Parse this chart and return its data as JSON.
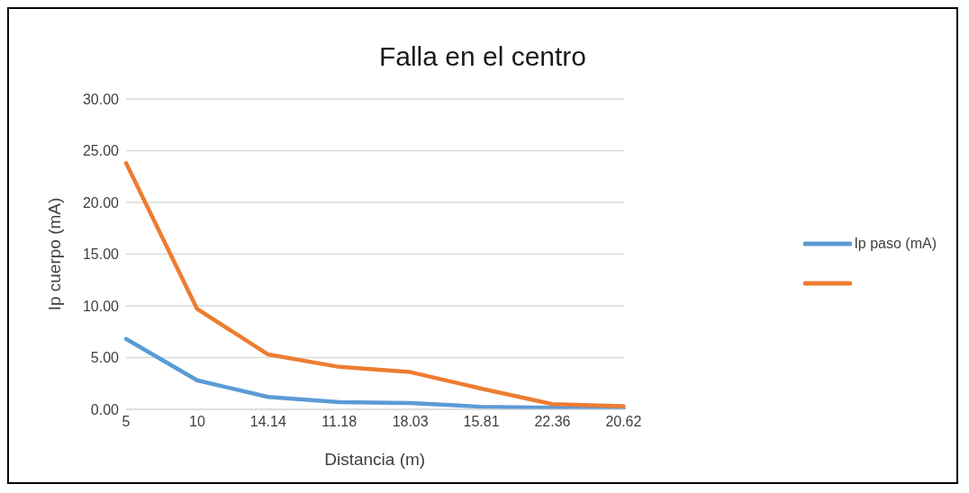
{
  "chart_data": {
    "type": "line",
    "title": "Falla en el centro",
    "xlabel": "Distancia (m)",
    "ylabel": "Ip cuerpo (mA)",
    "categories": [
      "5",
      "10",
      "14.14",
      "11.18",
      "18.03",
      "15.81",
      "22.36",
      "20.62"
    ],
    "series": [
      {
        "name": "Ip paso (mA)",
        "color": "#5b9bd5",
        "values": [
          6.8,
          2.8,
          1.2,
          0.7,
          0.6,
          0.25,
          0.15,
          0.05
        ]
      },
      {
        "color": "#ed7d31",
        "values": [
          23.8,
          9.7,
          5.3,
          4.1,
          3.6,
          2.0,
          0.5,
          0.3
        ]
      }
    ],
    "ylim": [
      0,
      30
    ],
    "yticks": [
      {
        "value": 0,
        "label": "0.00"
      },
      {
        "value": 5,
        "label": "5.00"
      },
      {
        "value": 10,
        "label": "10.00"
      },
      {
        "value": 15,
        "label": "15.00"
      },
      {
        "value": 20,
        "label": "20.00"
      },
      {
        "value": 25,
        "label": "25.00"
      },
      {
        "value": 30,
        "label": "30.00"
      }
    ],
    "grid": "y",
    "legend": "right",
    "marker": "none",
    "line_style": "solid"
  }
}
